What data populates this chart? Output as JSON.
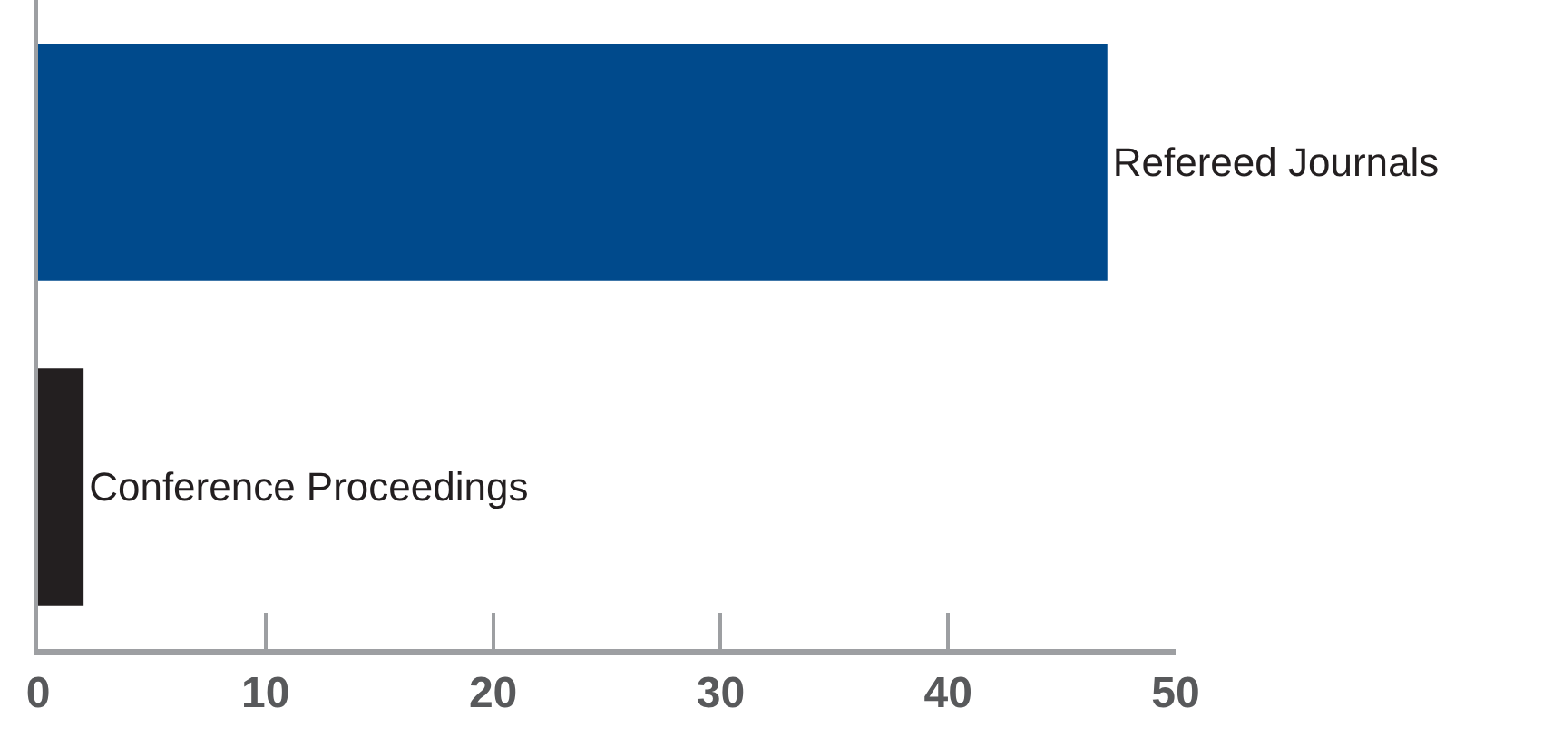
{
  "chart_data": {
    "type": "bar",
    "orientation": "horizontal",
    "categories": [
      "Refereed Journals",
      "Conference Proceedings"
    ],
    "values": [
      47,
      2
    ],
    "colors": [
      "#004a8c",
      "#231f20"
    ],
    "xlim": [
      0,
      50
    ],
    "xticks": [
      0,
      10,
      20,
      30,
      40,
      50
    ],
    "legend": false,
    "tick_labels": "x"
  }
}
